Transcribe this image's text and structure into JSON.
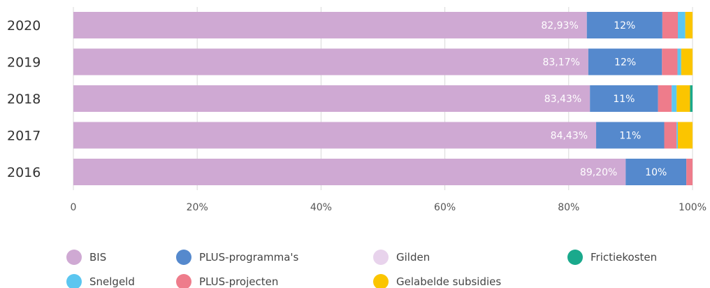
{
  "chart_data": {
    "type": "bar",
    "orientation": "horizontal",
    "stacked": true,
    "categories": [
      "2020",
      "2019",
      "2018",
      "2017",
      "2016"
    ],
    "series": [
      {
        "name": "BIS",
        "color": "#cfa9d3",
        "values": [
          82.93,
          83.17,
          83.43,
          84.43,
          89.2
        ],
        "labels": [
          "82,93%",
          "83,17%",
          "83,43%",
          "84,43%",
          "89,20%"
        ]
      },
      {
        "name": "PLUS-programma's",
        "color": "#5589cd",
        "values": [
          12.2,
          11.9,
          11.0,
          11.0,
          9.8
        ],
        "labels": [
          "12%",
          "12%",
          "11%",
          "11%",
          "10%"
        ]
      },
      {
        "name": "Gilden",
        "color": "#e8d3ec",
        "values": [
          0,
          0,
          0,
          0,
          0
        ]
      },
      {
        "name": "Frictiekosten",
        "color": "#1aa98c",
        "values": [
          0,
          0,
          0.4,
          0,
          0
        ]
      },
      {
        "name": "Snelgeld",
        "color": "#5bc6f0",
        "values": [
          1.2,
          0.6,
          0.8,
          0.2,
          0
        ]
      },
      {
        "name": "PLUS-projecten",
        "color": "#ee7c8b",
        "values": [
          2.5,
          2.5,
          2.2,
          2.0,
          1.0
        ]
      },
      {
        "name": "Gelabelde subsidies",
        "color": "#fbc500",
        "values": [
          1.17,
          1.83,
          2.17,
          2.37,
          0
        ]
      }
    ],
    "stack_order": [
      "BIS",
      "PLUS-programma's",
      "PLUS-projecten",
      "Snelgeld",
      "Gelabelde subsidies",
      "Frictiekosten",
      "Gilden"
    ],
    "x_ticks": [
      "0",
      "20%",
      "40%",
      "60%",
      "80%",
      "100%"
    ],
    "xlim": [
      0,
      100
    ],
    "grid": true,
    "legend": {
      "position": "bottom",
      "rows": [
        [
          "BIS",
          "PLUS-programma's",
          "Gilden",
          "Frictiekosten"
        ],
        [
          "Snelgeld",
          "PLUS-projecten",
          "Gelabelde subsidies"
        ]
      ]
    },
    "title": "",
    "xlabel": "",
    "ylabel": ""
  }
}
